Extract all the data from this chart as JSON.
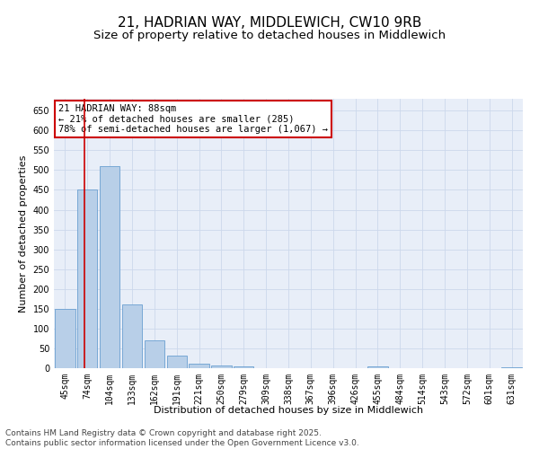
{
  "title_line1": "21, HADRIAN WAY, MIDDLEWICH, CW10 9RB",
  "title_line2": "Size of property relative to detached houses in Middlewich",
  "xlabel": "Distribution of detached houses by size in Middlewich",
  "ylabel": "Number of detached properties",
  "categories": [
    "45sqm",
    "74sqm",
    "104sqm",
    "133sqm",
    "162sqm",
    "191sqm",
    "221sqm",
    "250sqm",
    "279sqm",
    "309sqm",
    "338sqm",
    "367sqm",
    "396sqm",
    "426sqm",
    "455sqm",
    "484sqm",
    "514sqm",
    "543sqm",
    "572sqm",
    "601sqm",
    "631sqm"
  ],
  "values": [
    150,
    450,
    510,
    160,
    70,
    32,
    12,
    7,
    4,
    1,
    0,
    0,
    0,
    0,
    5,
    0,
    0,
    0,
    0,
    0,
    3
  ],
  "bar_color": "#b8cfe8",
  "bar_edge_color": "#6a9fd0",
  "vline_color": "#cc0000",
  "vline_x": 0.87,
  "annotation_text": "21 HADRIAN WAY: 88sqm\n← 21% of detached houses are smaller (285)\n78% of semi-detached houses are larger (1,067) →",
  "annotation_box_color": "#ffffff",
  "annotation_box_edge": "#cc0000",
  "ylim": [
    0,
    680
  ],
  "yticks": [
    0,
    50,
    100,
    150,
    200,
    250,
    300,
    350,
    400,
    450,
    500,
    550,
    600,
    650
  ],
  "grid_color": "#ccd8ec",
  "footnote": "Contains HM Land Registry data © Crown copyright and database right 2025.\nContains public sector information licensed under the Open Government Licence v3.0.",
  "title_fontsize": 11,
  "subtitle_fontsize": 9.5,
  "axis_label_fontsize": 8,
  "tick_fontsize": 7,
  "annot_fontsize": 7.5,
  "footnote_fontsize": 6.5
}
